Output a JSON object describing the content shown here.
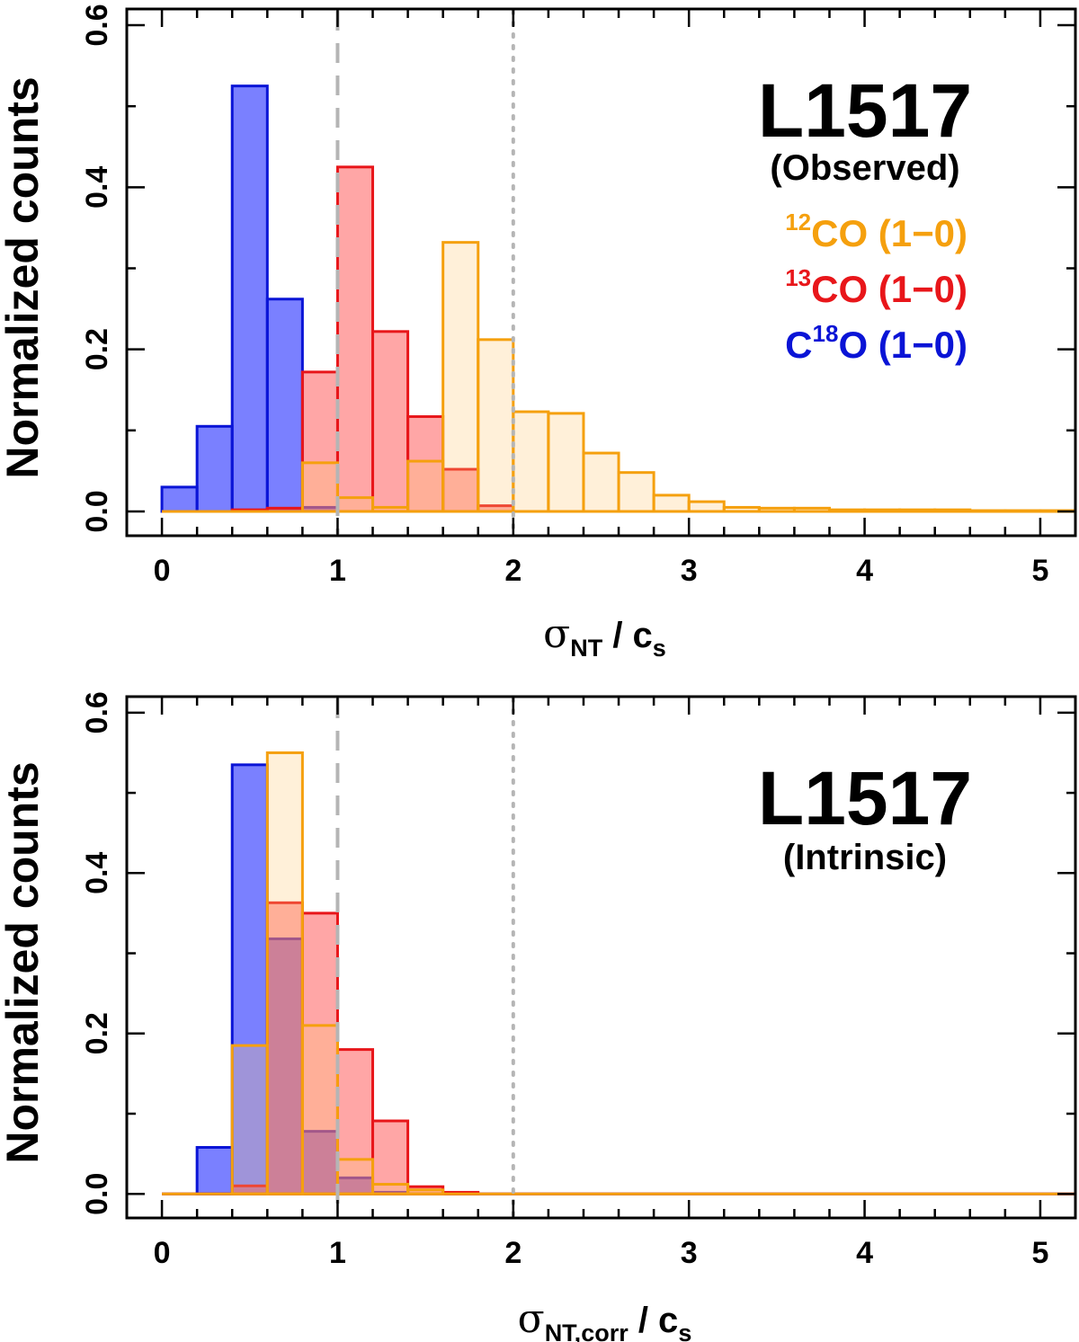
{
  "chart_data": [
    {
      "type": "bar",
      "panel": "top",
      "title": "L1517",
      "subtitle": "(Observed)",
      "xlabel_main": "σ",
      "xlabel_sub": "NT",
      "xlabel_div": " / c",
      "xlabel_sub2": "s",
      "ylabel": "Normalized counts",
      "xlim": [
        -0.2,
        5.2
      ],
      "ylim": [
        -0.03,
        0.62
      ],
      "xticks": [
        "0",
        "1",
        "2",
        "3",
        "4",
        "5"
      ],
      "yticks": [
        "0.0",
        "0.2",
        "0.4",
        "0.6"
      ],
      "vlines": [
        {
          "x": 1,
          "style": "dashed"
        },
        {
          "x": 2,
          "style": "dotted"
        }
      ],
      "bin_width": 0.2,
      "bin_starts": [
        0.0,
        0.2,
        0.4,
        0.6,
        0.8,
        1.0,
        1.2,
        1.4,
        1.6,
        1.8,
        2.0,
        2.2,
        2.4,
        2.6,
        2.8,
        3.0,
        3.2,
        3.4,
        3.6,
        3.8,
        4.0,
        4.2,
        4.4,
        4.6,
        4.8,
        5.0
      ],
      "series": [
        {
          "name": "C18O (1-0)",
          "edge": "#0a14d6",
          "fill": "rgba(40,50,255,0.62)",
          "values": [
            0.03,
            0.105,
            0.525,
            0.262,
            0.005,
            0,
            0,
            0,
            0,
            0,
            0,
            0,
            0,
            0,
            0,
            0,
            0,
            0,
            0,
            0,
            0,
            0,
            0,
            0,
            0,
            0
          ]
        },
        {
          "name": "13CO (1-0)",
          "edge": "#e8161a",
          "fill": "rgba(255,70,70,0.48)",
          "values": [
            0,
            0,
            0.002,
            0.004,
            0.172,
            0.425,
            0.222,
            0.117,
            0.052,
            0.007,
            0,
            0,
            0,
            0,
            0,
            0,
            0,
            0,
            0,
            0,
            0,
            0,
            0,
            0,
            0,
            0
          ]
        },
        {
          "name": "12CO (1-0)",
          "edge": "#f5a00e",
          "fill": "rgba(255,200,120,0.28)",
          "values": [
            0,
            0,
            0,
            0,
            0.06,
            0.017,
            0.005,
            0.062,
            0.332,
            0.212,
            0.123,
            0.121,
            0.072,
            0.048,
            0.02,
            0.012,
            0.005,
            0.004,
            0.004,
            0.002,
            0.002,
            0.002,
            0.002,
            0.001,
            0.001,
            0.001
          ]
        }
      ],
      "legend_entries": [
        {
          "pre": "",
          "sup": "12",
          "post": "CO (1−0)",
          "color": "#f5a00e"
        },
        {
          "pre": "",
          "sup": "13",
          "post": "CO (1−0)",
          "color": "#e8161a"
        },
        {
          "pre": "C",
          "sup": "18",
          "post": "O (1−0)",
          "color": "#0a14d6"
        }
      ]
    },
    {
      "type": "bar",
      "panel": "bottom",
      "title": "L1517",
      "subtitle": "(Intrinsic)",
      "xlabel_main": "σ",
      "xlabel_sub": "NT,corr",
      "xlabel_div": " / c",
      "xlabel_sub2": "s",
      "ylabel": "Normalized counts",
      "xlim": [
        -0.2,
        5.2
      ],
      "ylim": [
        -0.03,
        0.62
      ],
      "xticks": [
        "0",
        "1",
        "2",
        "3",
        "4",
        "5"
      ],
      "yticks": [
        "0.0",
        "0.2",
        "0.4",
        "0.6"
      ],
      "vlines": [
        {
          "x": 1,
          "style": "dashed"
        },
        {
          "x": 2,
          "style": "dotted"
        }
      ],
      "bin_width": 0.2,
      "bin_starts": [
        0.0,
        0.2,
        0.4,
        0.6,
        0.8,
        1.0,
        1.2,
        1.4,
        1.6,
        1.8,
        2.0,
        2.2,
        2.4,
        2.6,
        2.8,
        3.0,
        3.2,
        3.4,
        3.6,
        3.8,
        4.0,
        4.2,
        4.4,
        4.6,
        4.8,
        5.0
      ],
      "series": [
        {
          "name": "C18O (1-0)",
          "edge": "#0a14d6",
          "fill": "rgba(40,50,255,0.62)",
          "values": [
            0,
            0.058,
            0.535,
            0.318,
            0.078,
            0.02,
            0.002,
            0,
            0,
            0,
            0,
            0,
            0,
            0,
            0,
            0,
            0,
            0,
            0,
            0,
            0,
            0,
            0,
            0,
            0,
            0
          ]
        },
        {
          "name": "13CO (1-0)",
          "edge": "#e8161a",
          "fill": "rgba(255,70,70,0.48)",
          "values": [
            0,
            0,
            0.01,
            0.363,
            0.35,
            0.18,
            0.091,
            0.009,
            0.002,
            0,
            0,
            0,
            0,
            0,
            0,
            0,
            0,
            0,
            0,
            0,
            0,
            0,
            0,
            0,
            0,
            0
          ]
        },
        {
          "name": "12CO (1-0)",
          "edge": "#f5a00e",
          "fill": "rgba(255,200,120,0.28)",
          "values": [
            0,
            0,
            0.185,
            0.55,
            0.21,
            0.043,
            0.012,
            0.005,
            0,
            0,
            0,
            0,
            0,
            0,
            0,
            0,
            0,
            0,
            0,
            0,
            0,
            0,
            0,
            0,
            0,
            0
          ]
        }
      ],
      "legend_entries": []
    }
  ]
}
